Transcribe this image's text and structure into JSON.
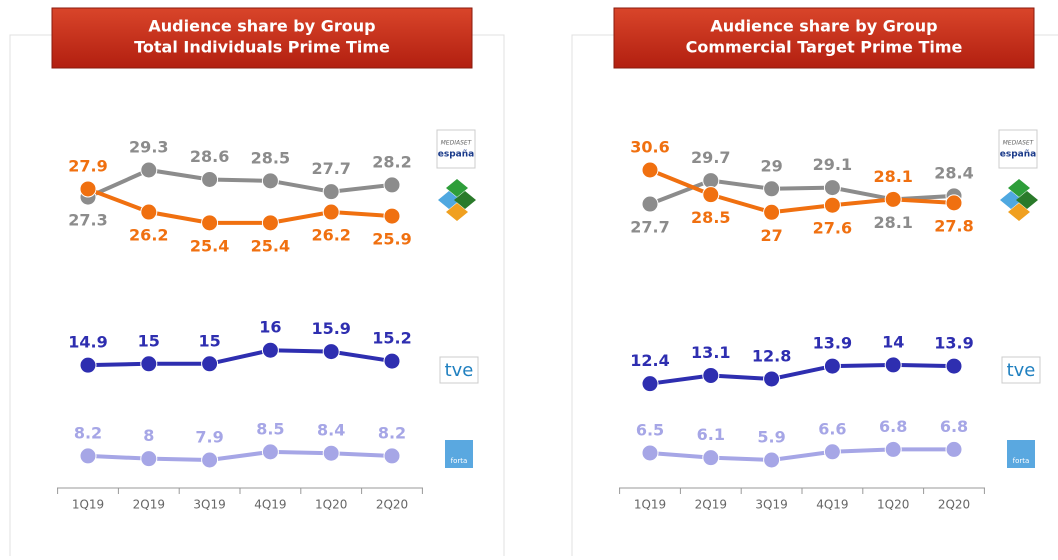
{
  "chart_data": [
    {
      "type": "line",
      "title": "Audience share by Group",
      "subtitle": "Total Individuals Prime Time",
      "categories": [
        "1Q19",
        "2Q19",
        "3Q19",
        "4Q19",
        "1Q20",
        "2Q20"
      ],
      "series": [
        {
          "color": "#8c8c8c",
          "values": [
            27.3,
            29.3,
            28.6,
            28.5,
            27.7,
            28.2
          ]
        },
        {
          "color": "#f07010",
          "values": [
            27.9,
            26.2,
            25.4,
            25.4,
            26.2,
            25.9
          ]
        },
        {
          "color": "#2e2eb0",
          "values": [
            14.9,
            15.0,
            15.0,
            16.0,
            15.9,
            15.2
          ]
        },
        {
          "color": "#a6a6e6",
          "values": [
            8.2,
            8.0,
            7.9,
            8.5,
            8.4,
            8.2
          ]
        }
      ]
    },
    {
      "type": "line",
      "title": "Audience share by Group",
      "subtitle": "Commercial Target Prime Time",
      "categories": [
        "1Q19",
        "2Q19",
        "3Q19",
        "4Q19",
        "1Q20",
        "2Q20"
      ],
      "series": [
        {
          "color": "#8c8c8c",
          "values": [
            27.7,
            29.7,
            29.0,
            29.1,
            28.1,
            28.4
          ]
        },
        {
          "color": "#f07010",
          "values": [
            30.6,
            28.5,
            27.0,
            27.6,
            28.1,
            27.8
          ]
        },
        {
          "color": "#2e2eb0",
          "values": [
            12.4,
            13.1,
            12.8,
            13.9,
            14.0,
            13.9
          ]
        },
        {
          "color": "#a6a6e6",
          "values": [
            6.5,
            6.1,
            5.9,
            6.6,
            6.8,
            6.8
          ]
        }
      ]
    }
  ],
  "logos": {
    "mediaset": "MEDIASET",
    "espana": "españa",
    "tve": "tve",
    "forta": "forta"
  }
}
